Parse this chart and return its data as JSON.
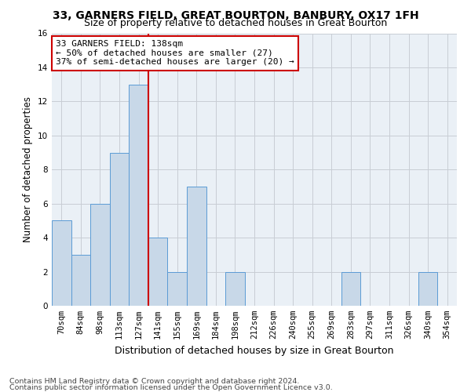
{
  "title": "33, GARNERS FIELD, GREAT BOURTON, BANBURY, OX17 1FH",
  "subtitle": "Size of property relative to detached houses in Great Bourton",
  "xlabel": "Distribution of detached houses by size in Great Bourton",
  "ylabel": "Number of detached properties",
  "footnote1": "Contains HM Land Registry data © Crown copyright and database right 2024.",
  "footnote2": "Contains public sector information licensed under the Open Government Licence v3.0.",
  "bin_labels": [
    "70sqm",
    "84sqm",
    "98sqm",
    "113sqm",
    "127sqm",
    "141sqm",
    "155sqm",
    "169sqm",
    "184sqm",
    "198sqm",
    "212sqm",
    "226sqm",
    "240sqm",
    "255sqm",
    "269sqm",
    "283sqm",
    "297sqm",
    "311sqm",
    "326sqm",
    "340sqm",
    "354sqm"
  ],
  "bar_heights": [
    5,
    3,
    6,
    9,
    13,
    4,
    2,
    7,
    0,
    2,
    0,
    0,
    0,
    0,
    0,
    2,
    0,
    0,
    0,
    2,
    0
  ],
  "bar_color": "#c8d8e8",
  "bar_edge_color": "#5b9bd5",
  "grid_color": "#c8cdd4",
  "vline_color": "#cc0000",
  "annotation_text": "33 GARNERS FIELD: 138sqm\n← 50% of detached houses are smaller (27)\n37% of semi-detached houses are larger (20) →",
  "annotation_box_color": "#ffffff",
  "annotation_box_edge": "#cc0000",
  "ylim": [
    0,
    16
  ],
  "yticks": [
    0,
    2,
    4,
    6,
    8,
    10,
    12,
    14,
    16
  ],
  "bg_color": "#eaf0f6",
  "title_fontsize": 10,
  "subtitle_fontsize": 9,
  "xlabel_fontsize": 9,
  "ylabel_fontsize": 8.5,
  "tick_fontsize": 7.5,
  "annotation_fontsize": 8,
  "footnote_fontsize": 6.8
}
